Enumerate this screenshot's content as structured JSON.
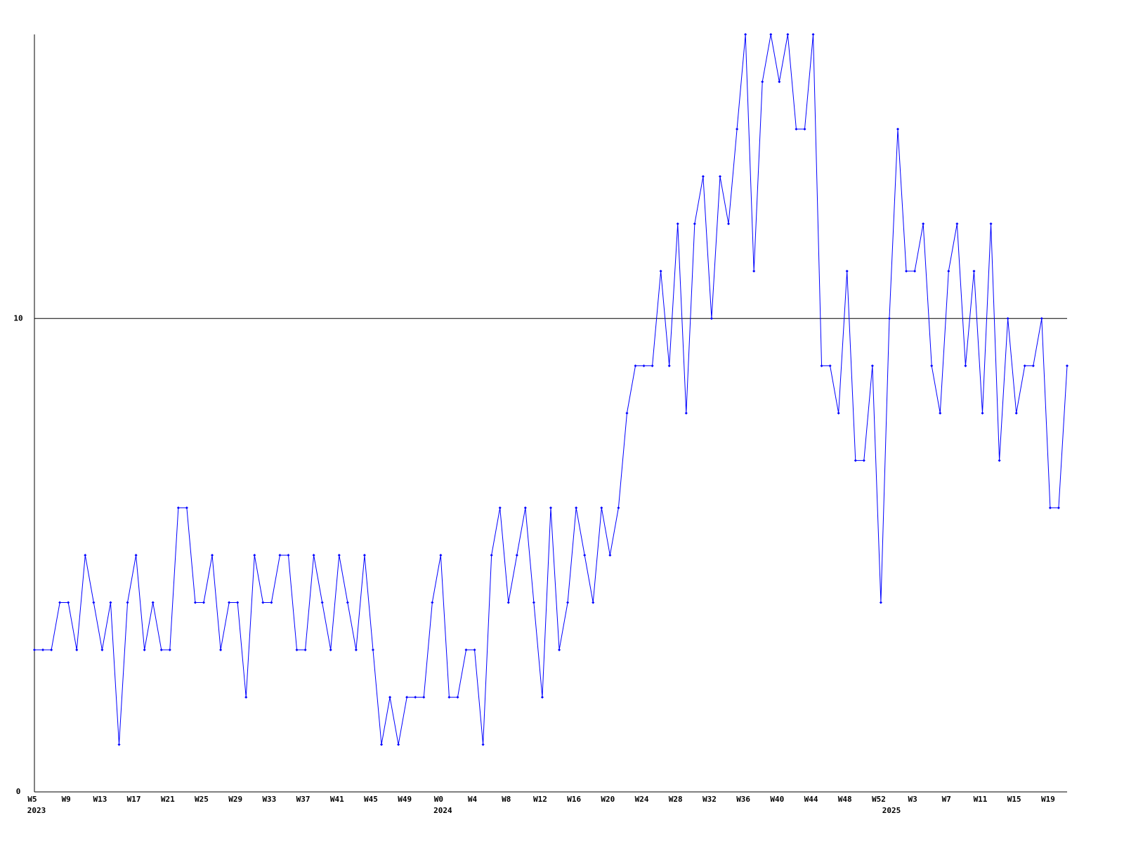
{
  "chart_data": {
    "type": "line",
    "categories": [
      "W5",
      null,
      null,
      null,
      "W9",
      null,
      null,
      null,
      "W13",
      null,
      null,
      null,
      "W17",
      null,
      null,
      null,
      "W21",
      null,
      null,
      null,
      "W25",
      null,
      null,
      null,
      "W29",
      null,
      null,
      null,
      "W33",
      null,
      null,
      null,
      "W37",
      null,
      null,
      null,
      "W41",
      null,
      null,
      null,
      "W45",
      null,
      null,
      null,
      "W49",
      null,
      null,
      null,
      "W0",
      null,
      null,
      null,
      "W4",
      null,
      null,
      null,
      "W8",
      null,
      null,
      null,
      "W12",
      null,
      null,
      null,
      "W16",
      null,
      null,
      null,
      "W20",
      null,
      null,
      null,
      "W24",
      null,
      null,
      null,
      "W28",
      null,
      null,
      null,
      "W32",
      null,
      null,
      null,
      "W36",
      null,
      null,
      null,
      "W40",
      null,
      null,
      null,
      "W44",
      null,
      null,
      null,
      "W48",
      null,
      null,
      null,
      "W52",
      null,
      null,
      null,
      "W3",
      null,
      null,
      null,
      "W7",
      null,
      null,
      null,
      "W11",
      null,
      null,
      null,
      "W15",
      null,
      null,
      null,
      "W19",
      null,
      null
    ],
    "years": [
      "2023",
      null,
      null,
      null,
      null,
      null,
      null,
      null,
      null,
      null,
      null,
      null,
      null,
      null,
      null,
      null,
      null,
      null,
      null,
      null,
      null,
      null,
      null,
      null,
      null,
      null,
      null,
      null,
      null,
      null,
      null,
      null,
      null,
      null,
      null,
      null,
      null,
      null,
      null,
      null,
      null,
      null,
      null,
      null,
      null,
      null,
      null,
      null,
      "2024",
      null,
      null,
      null,
      null,
      null,
      null,
      null,
      null,
      null,
      null,
      null,
      null,
      null,
      null,
      null,
      null,
      null,
      null,
      null,
      null,
      null,
      null,
      null,
      null,
      null,
      null,
      null,
      null,
      null,
      null,
      null,
      null,
      null,
      null,
      null,
      null,
      null,
      null,
      null,
      null,
      null,
      null,
      null,
      null,
      null,
      null,
      null,
      null,
      null,
      null,
      null,
      null,
      "2025",
      null,
      null,
      null,
      null,
      null,
      null,
      null,
      null,
      null,
      null,
      null,
      null,
      null,
      null,
      null,
      null,
      null,
      null,
      null,
      null,
      null
    ],
    "series": [
      {
        "color": "#0000ff",
        "values": [
          3,
          3,
          3,
          4,
          4,
          3,
          5,
          4,
          3,
          4,
          1,
          4,
          5,
          3,
          4,
          3,
          3,
          6,
          6,
          4,
          4,
          5,
          3,
          4,
          4,
          2,
          5,
          4,
          4,
          5,
          5,
          3,
          3,
          5,
          4,
          3,
          5,
          4,
          3,
          5,
          3,
          1,
          2,
          1,
          2,
          2,
          2,
          4,
          5,
          2,
          2,
          3,
          3,
          1,
          5,
          6,
          4,
          5,
          6,
          4,
          2,
          6,
          3,
          4,
          6,
          5,
          4,
          6,
          5,
          6,
          8,
          9,
          9,
          9,
          11,
          9,
          12,
          8,
          12,
          13,
          10,
          13,
          12,
          14,
          16,
          11,
          15,
          16,
          15,
          16,
          14,
          14,
          16,
          9,
          9,
          8,
          11,
          7,
          7,
          9,
          4,
          10,
          14,
          11,
          11,
          12,
          9,
          8,
          11,
          12,
          9,
          11,
          8,
          12,
          7,
          10,
          8,
          9,
          9,
          10,
          6,
          6,
          9
        ]
      }
    ],
    "ylim": [
      0,
      16
    ],
    "yticks": [
      0,
      10
    ],
    "grid": true
  }
}
